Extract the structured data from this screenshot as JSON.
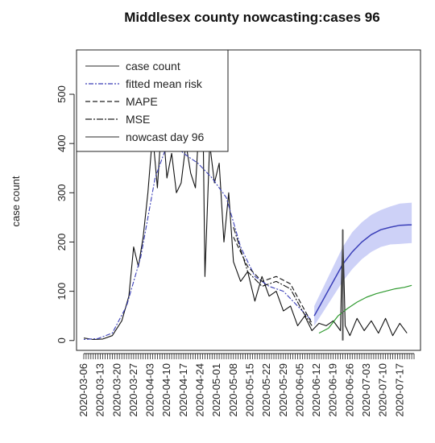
{
  "chart_data": {
    "type": "line",
    "title": "Middlesex county nowcasting:cases  96",
    "xlabel": "",
    "ylabel": "case count",
    "ylim": [
      -20,
      590
    ],
    "y_ticks": [
      0,
      100,
      200,
      300,
      400,
      500
    ],
    "x_range": [
      "2020-03-06",
      "2020-07-23"
    ],
    "x_tick_labels": [
      "2020-03-06",
      "2020-03-13",
      "2020-03-20",
      "2020-03-27",
      "2020-04-03",
      "2020-04-10",
      "2020-04-17",
      "2020-04-24",
      "2020-05-01",
      "2020-05-08",
      "2020-05-15",
      "2020-05-22",
      "2020-05-29",
      "2020-06-05",
      "2020-06-12",
      "2020-06-19",
      "2020-06-26",
      "2020-07-03",
      "2020-07-10",
      "2020-07-17"
    ],
    "legend": {
      "position": "top-left",
      "entries": [
        "case count",
        "fitted mean risk",
        "MAPE",
        "MSE",
        "nowcast day 96"
      ]
    },
    "nowcast_marker": {
      "date": "2020-06-23",
      "count": 225
    },
    "colors": {
      "band": "#c8ccf6",
      "mean": "#3a3fb8",
      "green": "#2f9a2f",
      "line": "#111111"
    },
    "series": [
      {
        "name": "case count",
        "x": [
          "2020-03-06",
          "2020-03-10",
          "2020-03-14",
          "2020-03-18",
          "2020-03-22",
          "2020-03-25",
          "2020-03-27",
          "2020-03-29",
          "2020-03-31",
          "2020-04-02",
          "2020-04-04",
          "2020-04-06",
          "2020-04-08",
          "2020-04-10",
          "2020-04-12",
          "2020-04-14",
          "2020-04-16",
          "2020-04-18",
          "2020-04-20",
          "2020-04-22",
          "2020-04-24",
          "2020-04-25",
          "2020-04-26",
          "2020-04-28",
          "2020-04-30",
          "2020-05-02",
          "2020-05-04",
          "2020-05-06",
          "2020-05-08",
          "2020-05-11",
          "2020-05-14",
          "2020-05-17",
          "2020-05-20",
          "2020-05-23",
          "2020-05-26",
          "2020-05-29",
          "2020-06-01",
          "2020-06-04",
          "2020-06-07",
          "2020-06-10",
          "2020-06-13",
          "2020-06-16",
          "2020-06-19",
          "2020-06-22",
          "2020-06-23",
          "2020-06-24",
          "2020-06-26",
          "2020-06-29",
          "2020-07-02",
          "2020-07-05",
          "2020-07-08",
          "2020-07-11",
          "2020-07-14",
          "2020-07-17",
          "2020-07-20"
        ],
        "values": [
          5,
          2,
          3,
          10,
          40,
          90,
          190,
          150,
          210,
          300,
          420,
          310,
          460,
          330,
          380,
          300,
          320,
          400,
          340,
          310,
          480,
          520,
          130,
          400,
          320,
          360,
          200,
          300,
          160,
          120,
          140,
          80,
          130,
          90,
          100,
          60,
          70,
          30,
          50,
          20,
          35,
          30,
          40,
          20,
          225,
          30,
          10,
          45,
          20,
          40,
          15,
          45,
          10,
          35,
          15
        ]
      },
      {
        "name": "fitted mean risk",
        "x": [
          "2020-03-06",
          "2020-03-12",
          "2020-03-18",
          "2020-03-24",
          "2020-03-30",
          "2020-04-05",
          "2020-04-11",
          "2020-04-17",
          "2020-04-23",
          "2020-04-29",
          "2020-05-05",
          "2020-05-11",
          "2020-05-17",
          "2020-05-23",
          "2020-05-29",
          "2020-06-04",
          "2020-06-10"
        ],
        "values": [
          2,
          4,
          15,
          70,
          170,
          330,
          410,
          380,
          360,
          330,
          290,
          190,
          130,
          110,
          100,
          70,
          40
        ]
      },
      {
        "name": "MAPE",
        "x": [
          "2020-05-08",
          "2020-05-14",
          "2020-05-20",
          "2020-05-26",
          "2020-06-01",
          "2020-06-06",
          "2020-06-10"
        ],
        "values": [
          210,
          150,
          120,
          130,
          115,
          70,
          35
        ]
      },
      {
        "name": "MSE",
        "x": [
          "2020-05-08",
          "2020-05-14",
          "2020-05-20",
          "2020-05-26",
          "2020-06-01",
          "2020-06-06",
          "2020-06-10"
        ],
        "values": [
          230,
          140,
          110,
          120,
          105,
          60,
          30
        ]
      },
      {
        "name": "",
        "x": [
          "2020-06-13",
          "2020-06-17",
          "2020-06-21",
          "2020-06-25",
          "2020-06-29",
          "2020-07-03",
          "2020-07-07",
          "2020-07-11",
          "2020-07-15",
          "2020-07-19",
          "2020-07-22"
        ],
        "values": [
          15,
          25,
          50,
          65,
          78,
          88,
          95,
          100,
          105,
          108,
          112
        ]
      }
    ],
    "nowcast_band": {
      "x": [
        "2020-06-11",
        "2020-06-15",
        "2020-06-19",
        "2020-06-23",
        "2020-06-27",
        "2020-07-01",
        "2020-07-05",
        "2020-07-09",
        "2020-07-13",
        "2020-07-17",
        "2020-07-22"
      ],
      "mean": [
        50,
        85,
        120,
        155,
        180,
        200,
        215,
        225,
        230,
        234,
        235
      ],
      "lower": [
        30,
        60,
        90,
        120,
        145,
        165,
        180,
        190,
        195,
        196,
        198
      ],
      "upper": [
        70,
        110,
        150,
        190,
        220,
        240,
        255,
        265,
        272,
        278,
        280
      ]
    }
  }
}
